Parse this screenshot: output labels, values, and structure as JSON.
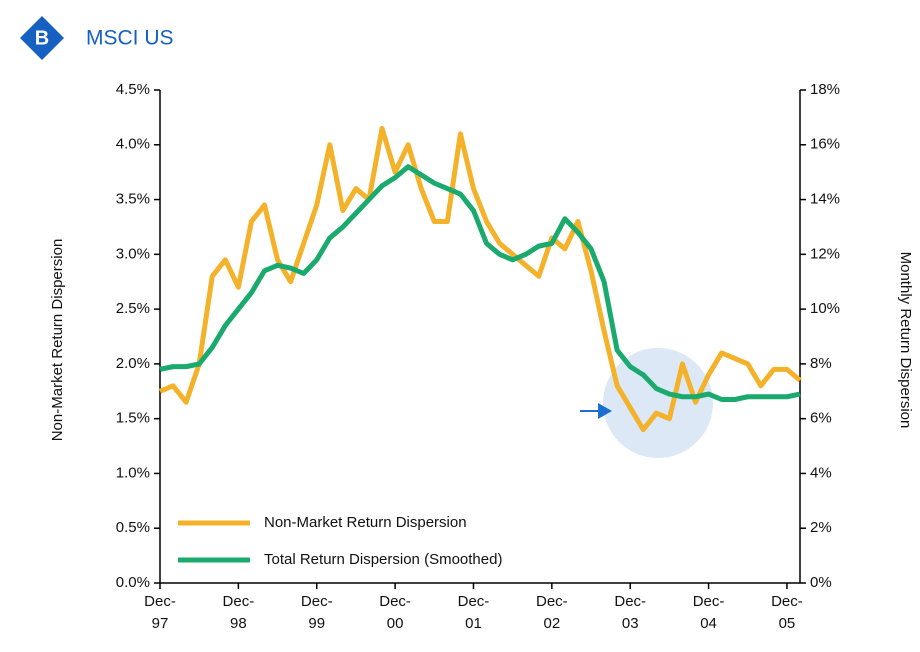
{
  "chart_data": {
    "type": "line",
    "badge": "B",
    "title": "MSCI US",
    "y_label": "Non-Market Return Dispersion",
    "y2_label": "Monthly Return Dispersion",
    "xlim": [
      0,
      98
    ],
    "xticks": [
      {
        "value": 0,
        "label": "Dec-97"
      },
      {
        "value": 12,
        "label": "Dec-98"
      },
      {
        "value": 24,
        "label": "Dec-99"
      },
      {
        "value": 36,
        "label": "Dec-00"
      },
      {
        "value": 48,
        "label": "Dec-01"
      },
      {
        "value": 60,
        "label": "Dec-02"
      },
      {
        "value": 72,
        "label": "Dec-03"
      },
      {
        "value": 84,
        "label": "Dec-04"
      },
      {
        "value": 96,
        "label": "Dec-05"
      }
    ],
    "ylim": [
      0,
      4.5
    ],
    "yticks": [
      {
        "value": 0,
        "label": "0.0%"
      },
      {
        "value": 0.5,
        "label": "0.5%"
      },
      {
        "value": 1,
        "label": "1.0%"
      },
      {
        "value": 1.5,
        "label": "1.5%"
      },
      {
        "value": 2,
        "label": "2.0%"
      },
      {
        "value": 2.5,
        "label": "2.5%"
      },
      {
        "value": 3,
        "label": "3.0%"
      },
      {
        "value": 3.5,
        "label": "3.5%"
      },
      {
        "value": 4,
        "label": "4.0%"
      },
      {
        "value": 4.5,
        "label": "4.5%"
      }
    ],
    "y2lim": [
      0,
      18
    ],
    "y2ticks": [
      {
        "value": 0,
        "label": "0%"
      },
      {
        "value": 2,
        "label": "2%"
      },
      {
        "value": 4,
        "label": "4%"
      },
      {
        "value": 6,
        "label": "6%"
      },
      {
        "value": 8,
        "label": "8%"
      },
      {
        "value": 10,
        "label": "10%"
      },
      {
        "value": 12,
        "label": "12%"
      },
      {
        "value": 14,
        "label": "14%"
      },
      {
        "value": 16,
        "label": "16%"
      },
      {
        "value": 18,
        "label": "18%"
      }
    ],
    "grid": false,
    "legend": "lower left",
    "x": [
      0,
      2,
      4,
      6,
      8,
      10,
      12,
      14,
      16,
      18,
      20,
      22,
      24,
      26,
      28,
      30,
      32,
      34,
      36,
      38,
      40,
      42,
      44,
      46,
      48,
      50,
      52,
      54,
      56,
      58,
      60,
      62,
      64,
      66,
      68,
      70,
      72,
      74,
      76,
      78,
      80,
      82,
      84,
      86,
      88,
      90,
      92,
      94,
      96,
      98
    ],
    "series": [
      {
        "name": "Non-Market Return Dispersion",
        "color": "#f4b12a",
        "axis": "y",
        "values": [
          1.75,
          1.8,
          1.65,
          2.0,
          2.8,
          2.95,
          2.7,
          3.3,
          3.45,
          2.95,
          2.75,
          3.1,
          3.45,
          4.0,
          3.4,
          3.6,
          3.5,
          4.15,
          3.75,
          4.0,
          3.6,
          3.3,
          3.3,
          4.1,
          3.6,
          3.3,
          3.1,
          3.0,
          2.9,
          2.8,
          3.15,
          3.05,
          3.3,
          2.85,
          2.3,
          1.8,
          1.6,
          1.4,
          1.55,
          1.5,
          2.0,
          1.65,
          1.9,
          2.1,
          2.05,
          2.0,
          1.8,
          1.95,
          1.95,
          1.85
        ]
      },
      {
        "name": "Total Return Dispersion (Smoothed)",
        "color": "#1aaa6e",
        "axis": "y2",
        "values": [
          7.8,
          7.9,
          7.9,
          8.0,
          8.6,
          9.4,
          10.0,
          10.6,
          11.4,
          11.6,
          11.5,
          11.3,
          11.8,
          12.6,
          13.0,
          13.5,
          14.0,
          14.5,
          14.8,
          15.2,
          14.9,
          14.6,
          14.4,
          14.2,
          13.6,
          12.4,
          12.0,
          11.8,
          12.0,
          12.3,
          12.4,
          13.3,
          12.8,
          12.2,
          11.0,
          8.5,
          7.9,
          7.6,
          7.1,
          6.9,
          6.8,
          6.8,
          6.9,
          6.7,
          6.7,
          6.8,
          6.8,
          6.8,
          6.8,
          6.9
        ]
      }
    ]
  }
}
